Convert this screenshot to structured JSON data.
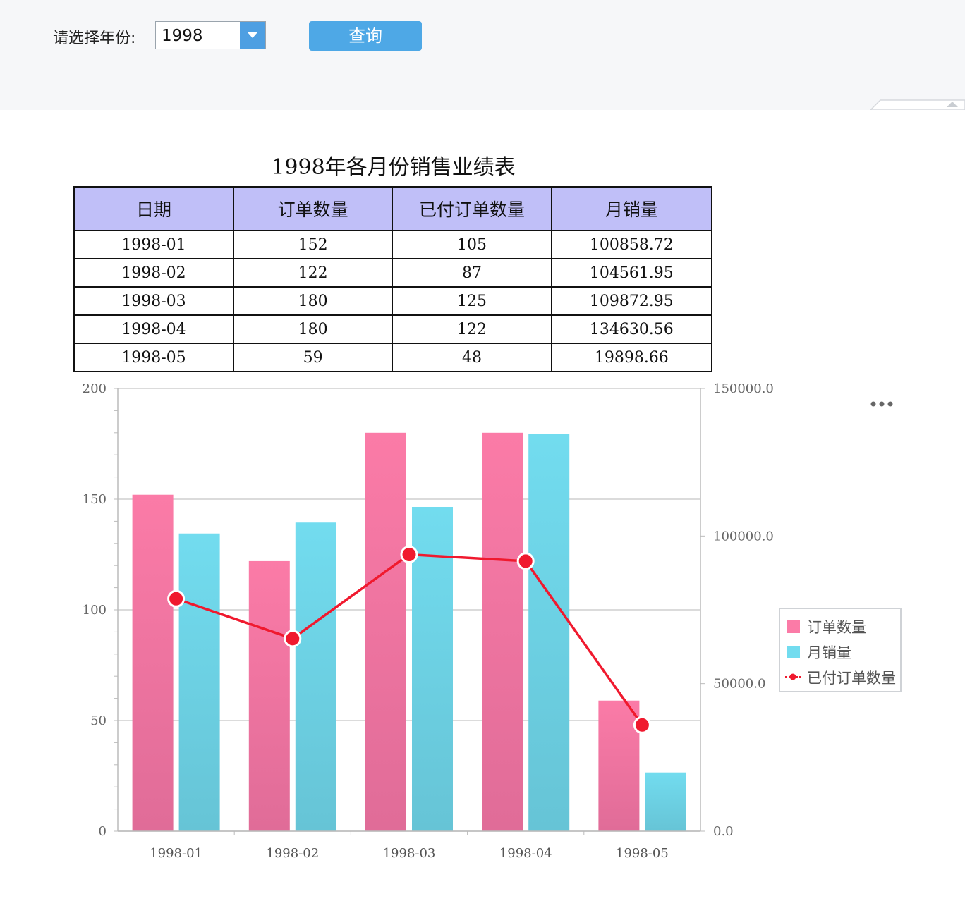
{
  "filter": {
    "label": "请选择年份:",
    "selected_year": "1998",
    "query_button": "查询"
  },
  "report": {
    "title": "1998年各月份销售业绩表",
    "columns": [
      "日期",
      "订单数量",
      "已付订单数量",
      "月销量"
    ],
    "rows": [
      [
        "1998-01",
        "152",
        "105",
        "100858.72"
      ],
      [
        "1998-02",
        "122",
        "87",
        "104561.95"
      ],
      [
        "1998-03",
        "180",
        "125",
        "109872.95"
      ],
      [
        "1998-04",
        "180",
        "122",
        "134630.56"
      ],
      [
        "1998-05",
        "59",
        "48",
        "19898.66"
      ]
    ]
  },
  "legend": {
    "orders": "订单数量",
    "sales": "月销量",
    "paid": "已付订单数量"
  },
  "colors": {
    "orders_top": "#fb7ba7",
    "orders_bottom": "#e06c98",
    "sales_top": "#72dcef",
    "sales_bottom": "#66c4d6",
    "paid_line": "#f0192e"
  },
  "chart_data": {
    "type": "bar",
    "categories": [
      "1998-01",
      "1998-02",
      "1998-03",
      "1998-04",
      "1998-05"
    ],
    "series": [
      {
        "name": "订单数量",
        "type": "bar",
        "axis": "left",
        "values": [
          152,
          122,
          180,
          180,
          59
        ]
      },
      {
        "name": "月销量",
        "type": "bar",
        "axis": "right",
        "values": [
          100858.72,
          104561.95,
          109872.95,
          134630.56,
          19898.66
        ]
      },
      {
        "name": "已付订单数量",
        "type": "line",
        "axis": "left",
        "values": [
          105,
          87,
          125,
          122,
          48
        ]
      }
    ],
    "y_left": {
      "min": 0,
      "max": 200,
      "ticks": [
        "0",
        "50",
        "100",
        "150",
        "200"
      ]
    },
    "y_right": {
      "min": 0,
      "max": 150000,
      "ticks": [
        "0.0",
        "50000.0",
        "100000.0",
        "150000.0"
      ]
    },
    "grid": true,
    "legend_position": "right"
  }
}
